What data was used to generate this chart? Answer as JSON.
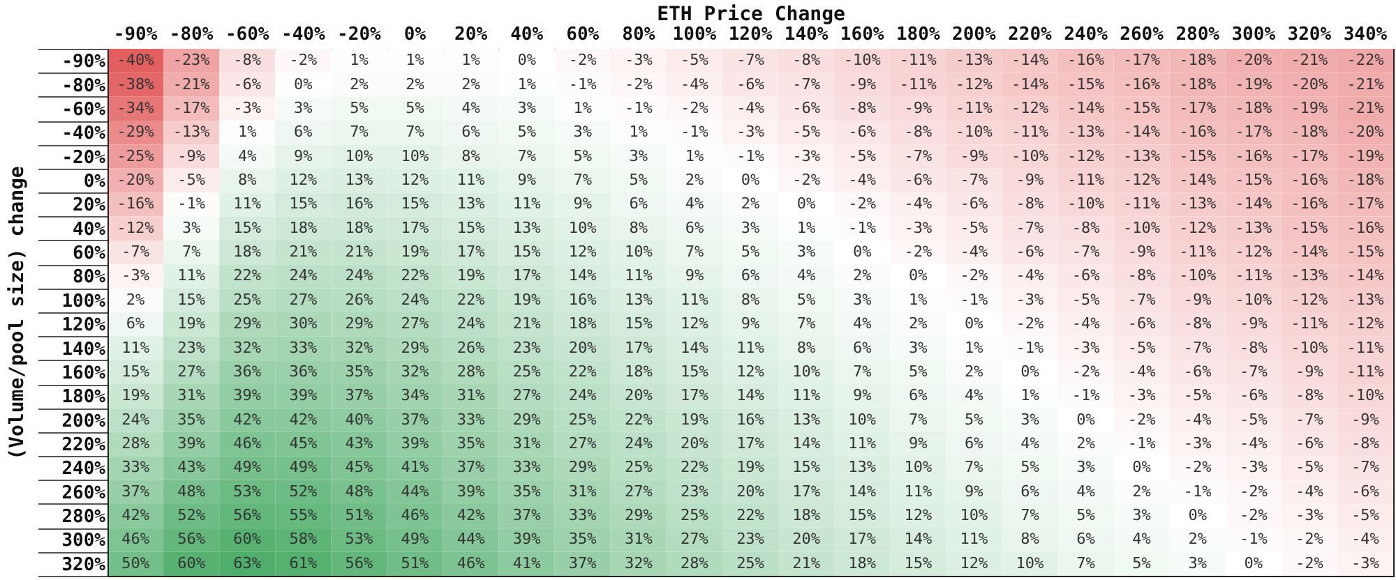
{
  "chart_data": {
    "type": "heatmap",
    "xlabel": "ETH Price Change",
    "ylabel": "(Volume/pool size) change",
    "categories": [
      "-90%",
      "-80%",
      "-60%",
      "-40%",
      "-20%",
      "0%",
      "20%",
      "40%",
      "60%",
      "80%",
      "100%",
      "120%",
      "140%",
      "160%",
      "180%",
      "200%",
      "220%",
      "240%",
      "260%",
      "280%",
      "300%",
      "320%",
      "340%"
    ],
    "y_categories": [
      "-90%",
      "-80%",
      "-60%",
      "-40%",
      "-20%",
      "0%",
      "20%",
      "40%",
      "60%",
      "80%",
      "100%",
      "120%",
      "140%",
      "160%",
      "180%",
      "200%",
      "220%",
      "240%",
      "260%",
      "280%",
      "300%",
      "320%"
    ],
    "cells": [
      [
        -40,
        -23,
        -8,
        -2,
        1,
        1,
        1,
        0,
        -2,
        -3,
        -5,
        -7,
        -8,
        -10,
        -11,
        -13,
        -14,
        -16,
        -17,
        -18,
        -20,
        -21,
        -22
      ],
      [
        -38,
        -21,
        -6,
        0,
        2,
        2,
        2,
        1,
        -1,
        -2,
        -4,
        -6,
        -7,
        -9,
        -11,
        -12,
        -14,
        -15,
        -16,
        -18,
        -19,
        -20,
        -21
      ],
      [
        -34,
        -17,
        -3,
        3,
        5,
        5,
        4,
        3,
        1,
        -1,
        -2,
        -4,
        -6,
        -8,
        -9,
        -11,
        -12,
        -14,
        -15,
        -17,
        -18,
        -19,
        -21
      ],
      [
        -29,
        -13,
        1,
        6,
        7,
        7,
        6,
        5,
        3,
        1,
        -1,
        -3,
        -5,
        -6,
        -8,
        -10,
        -11,
        -13,
        -14,
        -16,
        -17,
        -18,
        -20
      ],
      [
        -25,
        -9,
        4,
        9,
        10,
        10,
        8,
        7,
        5,
        3,
        1,
        -1,
        -3,
        -5,
        -7,
        -9,
        -10,
        -12,
        -13,
        -15,
        -16,
        -17,
        -19
      ],
      [
        -20,
        -5,
        8,
        12,
        13,
        12,
        11,
        9,
        7,
        5,
        2,
        0,
        -2,
        -4,
        -6,
        -7,
        -9,
        -11,
        -12,
        -14,
        -15,
        -16,
        -18
      ],
      [
        -16,
        -1,
        11,
        15,
        16,
        15,
        13,
        11,
        9,
        6,
        4,
        2,
        0,
        -2,
        -4,
        -6,
        -8,
        -10,
        -11,
        -13,
        -14,
        -16,
        -17
      ],
      [
        -12,
        3,
        15,
        18,
        18,
        17,
        15,
        13,
        10,
        8,
        6,
        3,
        1,
        -1,
        -3,
        -5,
        -7,
        -8,
        -10,
        -12,
        -13,
        -15,
        -16
      ],
      [
        -7,
        7,
        18,
        21,
        21,
        19,
        17,
        15,
        12,
        10,
        7,
        5,
        3,
        0,
        -2,
        -4,
        -6,
        -7,
        -9,
        -11,
        -12,
        -14,
        -15
      ],
      [
        -3,
        11,
        22,
        24,
        24,
        22,
        19,
        17,
        14,
        11,
        9,
        6,
        4,
        2,
        0,
        -2,
        -4,
        -6,
        -8,
        -10,
        -11,
        -13,
        -14
      ],
      [
        2,
        15,
        25,
        27,
        26,
        24,
        22,
        19,
        16,
        13,
        11,
        8,
        5,
        3,
        1,
        -1,
        -3,
        -5,
        -7,
        -9,
        -10,
        -12,
        -13
      ],
      [
        6,
        19,
        29,
        30,
        29,
        27,
        24,
        21,
        18,
        15,
        12,
        9,
        7,
        4,
        2,
        0,
        -2,
        -4,
        -6,
        -8,
        -9,
        -11,
        -12
      ],
      [
        11,
        23,
        32,
        33,
        32,
        29,
        26,
        23,
        20,
        17,
        14,
        11,
        8,
        6,
        3,
        1,
        -1,
        -3,
        -5,
        -7,
        -8,
        -10,
        -11
      ],
      [
        15,
        27,
        36,
        36,
        35,
        32,
        28,
        25,
        22,
        18,
        15,
        12,
        10,
        7,
        5,
        2,
        0,
        -2,
        -4,
        -6,
        -7,
        -9,
        -11
      ],
      [
        19,
        31,
        39,
        39,
        37,
        34,
        31,
        27,
        24,
        20,
        17,
        14,
        11,
        9,
        6,
        4,
        1,
        -1,
        -3,
        -5,
        -6,
        -8,
        -10
      ],
      [
        24,
        35,
        42,
        42,
        40,
        37,
        33,
        29,
        25,
        22,
        19,
        16,
        13,
        10,
        7,
        5,
        3,
        0,
        -2,
        -4,
        -5,
        -7,
        -9
      ],
      [
        28,
        39,
        46,
        45,
        43,
        39,
        35,
        31,
        27,
        24,
        20,
        17,
        14,
        11,
        9,
        6,
        4,
        2,
        -1,
        -3,
        -4,
        -6,
        -8
      ],
      [
        33,
        43,
        49,
        49,
        45,
        41,
        37,
        33,
        29,
        25,
        22,
        19,
        15,
        13,
        10,
        7,
        5,
        3,
        0,
        -2,
        -3,
        -5,
        -7
      ],
      [
        37,
        48,
        53,
        52,
        48,
        44,
        39,
        35,
        31,
        27,
        23,
        20,
        17,
        14,
        11,
        9,
        6,
        4,
        2,
        -1,
        -2,
        -4,
        -6
      ],
      [
        42,
        52,
        56,
        55,
        51,
        46,
        42,
        37,
        33,
        29,
        25,
        22,
        18,
        15,
        12,
        10,
        7,
        5,
        3,
        0,
        -2,
        -3,
        -5
      ],
      [
        46,
        56,
        60,
        58,
        53,
        49,
        44,
        39,
        35,
        31,
        27,
        23,
        20,
        17,
        14,
        11,
        8,
        6,
        4,
        2,
        -1,
        -2,
        -4
      ],
      [
        50,
        60,
        63,
        61,
        56,
        51,
        46,
        41,
        37,
        32,
        28,
        25,
        21,
        18,
        15,
        12,
        10,
        7,
        5,
        3,
        0,
        -2,
        -3
      ]
    ],
    "cell_labels": [
      [
        "-40%",
        "-23%",
        "-8%",
        "-2%",
        "1%",
        "1%",
        "1%",
        "0%",
        "-2%",
        "-3%",
        "-5%",
        "-7%",
        "-8%",
        "-10%",
        "-11%",
        "-13%",
        "-14%",
        "-16%",
        "-17%",
        "-18%",
        "-20%",
        "-21%",
        "-22%"
      ],
      [
        "-38%",
        "-21%",
        "-6%",
        "0%",
        "2%",
        "2%",
        "2%",
        "1%",
        "-1%",
        "-2%",
        "-4%",
        "-6%",
        "-7%",
        "-9%",
        "-11%",
        "-12%",
        "-14%",
        "-15%",
        "-16%",
        "-18%",
        "-19%",
        "-20%",
        "-21%"
      ],
      [
        "-34%",
        "-17%",
        "-3%",
        "3%",
        "5%",
        "5%",
        "4%",
        "3%",
        "1%",
        "-1%",
        "-2%",
        "-4%",
        "-6%",
        "-8%",
        "-9%",
        "-11%",
        "-12%",
        "-14%",
        "-15%",
        "-17%",
        "-18%",
        "-19%",
        "-21%"
      ],
      [
        "-29%",
        "-13%",
        "1%",
        "6%",
        "7%",
        "7%",
        "6%",
        "5%",
        "3%",
        "1%",
        "-1%",
        "-3%",
        "-5%",
        "-6%",
        "-8%",
        "-10%",
        "-11%",
        "-13%",
        "-14%",
        "-16%",
        "-17%",
        "-18%",
        "-20%"
      ],
      [
        "-25%",
        "-9%",
        "4%",
        "9%",
        "10%",
        "10%",
        "8%",
        "7%",
        "5%",
        "3%",
        "1%",
        "-1%",
        "-3%",
        "-5%",
        "-7%",
        "-9%",
        "-10%",
        "-12%",
        "-13%",
        "-15%",
        "-16%",
        "-17%",
        "-19%"
      ],
      [
        "-20%",
        "-5%",
        "8%",
        "12%",
        "13%",
        "12%",
        "11%",
        "9%",
        "7%",
        "5%",
        "2%",
        "0%",
        "-2%",
        "-4%",
        "-6%",
        "-7%",
        "-9%",
        "-11%",
        "-12%",
        "-14%",
        "-15%",
        "-16%",
        "-18%"
      ],
      [
        "-16%",
        "-1%",
        "11%",
        "15%",
        "16%",
        "15%",
        "13%",
        "11%",
        "9%",
        "6%",
        "4%",
        "2%",
        "0%",
        "-2%",
        "-4%",
        "-6%",
        "-8%",
        "-10%",
        "-11%",
        "-13%",
        "-14%",
        "-16%",
        "-17%"
      ],
      [
        "-12%",
        "3%",
        "15%",
        "18%",
        "18%",
        "17%",
        "15%",
        "13%",
        "10%",
        "8%",
        "6%",
        "3%",
        "1%",
        "-1%",
        "-3%",
        "-5%",
        "-7%",
        "-8%",
        "-10%",
        "-12%",
        "-13%",
        "-15%",
        "-16%"
      ],
      [
        "-7%",
        "7%",
        "18%",
        "21%",
        "21%",
        "19%",
        "17%",
        "15%",
        "12%",
        "10%",
        "7%",
        "5%",
        "3%",
        "0%",
        "-2%",
        "-4%",
        "-6%",
        "-7%",
        "-9%",
        "-11%",
        "-12%",
        "-14%",
        "-15%"
      ],
      [
        "-3%",
        "11%",
        "22%",
        "24%",
        "24%",
        "22%",
        "19%",
        "17%",
        "14%",
        "11%",
        "9%",
        "6%",
        "4%",
        "2%",
        "0%",
        "-2%",
        "-4%",
        "-6%",
        "-8%",
        "-10%",
        "-11%",
        "-13%",
        "-14%"
      ],
      [
        "2%",
        "15%",
        "25%",
        "27%",
        "26%",
        "24%",
        "22%",
        "19%",
        "16%",
        "13%",
        "11%",
        "8%",
        "5%",
        "3%",
        "1%",
        "-1%",
        "-3%",
        "-5%",
        "-7%",
        "-9%",
        "-10%",
        "-12%",
        "-13%"
      ],
      [
        "6%",
        "19%",
        "29%",
        "30%",
        "29%",
        "27%",
        "24%",
        "21%",
        "18%",
        "15%",
        "12%",
        "9%",
        "7%",
        "4%",
        "2%",
        "0%",
        "-2%",
        "-4%",
        "-6%",
        "-8%",
        "-9%",
        "-11%",
        "-12%"
      ],
      [
        "11%",
        "23%",
        "32%",
        "33%",
        "32%",
        "29%",
        "26%",
        "23%",
        "20%",
        "17%",
        "14%",
        "11%",
        "8%",
        "6%",
        "3%",
        "1%",
        "-1%",
        "-3%",
        "-5%",
        "-7%",
        "-8%",
        "-10%",
        "-11%"
      ],
      [
        "15%",
        "27%",
        "36%",
        "36%",
        "35%",
        "32%",
        "28%",
        "25%",
        "22%",
        "18%",
        "15%",
        "12%",
        "10%",
        "7%",
        "5%",
        "2%",
        "0%",
        "-2%",
        "-4%",
        "-6%",
        "-7%",
        "-9%",
        "-11%"
      ],
      [
        "19%",
        "31%",
        "39%",
        "39%",
        "37%",
        "34%",
        "31%",
        "27%",
        "24%",
        "20%",
        "17%",
        "14%",
        "11%",
        "9%",
        "6%",
        "4%",
        "1%",
        "-1%",
        "-3%",
        "-5%",
        "-6%",
        "-8%",
        "-10%"
      ],
      [
        "24%",
        "35%",
        "42%",
        "42%",
        "40%",
        "37%",
        "33%",
        "29%",
        "25%",
        "22%",
        "19%",
        "16%",
        "13%",
        "10%",
        "7%",
        "5%",
        "3%",
        "0%",
        "-2%",
        "-4%",
        "-5%",
        "-7%",
        "-9%"
      ],
      [
        "28%",
        "39%",
        "46%",
        "45%",
        "43%",
        "39%",
        "35%",
        "31%",
        "27%",
        "24%",
        "20%",
        "17%",
        "14%",
        "11%",
        "9%",
        "6%",
        "4%",
        "2%",
        "-1%",
        "-3%",
        "-4%",
        "-6%",
        "-8%"
      ],
      [
        "33%",
        "43%",
        "49%",
        "49%",
        "45%",
        "41%",
        "37%",
        "33%",
        "29%",
        "25%",
        "22%",
        "19%",
        "15%",
        "13%",
        "10%",
        "7%",
        "5%",
        "3%",
        "0%",
        "-2%",
        "-3%",
        "-5%",
        "-7%"
      ],
      [
        "37%",
        "48%",
        "53%",
        "52%",
        "48%",
        "44%",
        "39%",
        "35%",
        "31%",
        "27%",
        "23%",
        "20%",
        "17%",
        "14%",
        "11%",
        "9%",
        "6%",
        "4%",
        "2%",
        "-1%",
        "-2%",
        "-4%",
        "-6%"
      ],
      [
        "42%",
        "52%",
        "56%",
        "55%",
        "51%",
        "46%",
        "42%",
        "37%",
        "33%",
        "29%",
        "25%",
        "22%",
        "18%",
        "15%",
        "12%",
        "10%",
        "7%",
        "5%",
        "3%",
        "0%",
        "-2%",
        "-3%",
        "-5%"
      ],
      [
        "46%",
        "56%",
        "60%",
        "58%",
        "53%",
        "49%",
        "44%",
        "39%",
        "35%",
        "31%",
        "27%",
        "23%",
        "20%",
        "17%",
        "14%",
        "11%",
        "8%",
        "6%",
        "4%",
        "2%",
        "-1%",
        "-2%",
        "-4%"
      ],
      [
        "50%",
        "60%",
        "63%",
        "61%",
        "56%",
        "51%",
        "46%",
        "41%",
        "37%",
        "32%",
        "28%",
        "25%",
        "21%",
        "18%",
        "15%",
        "12%",
        "10%",
        "7%",
        "5%",
        "3%",
        "0%",
        "-2%",
        "-3%"
      ]
    ]
  }
}
